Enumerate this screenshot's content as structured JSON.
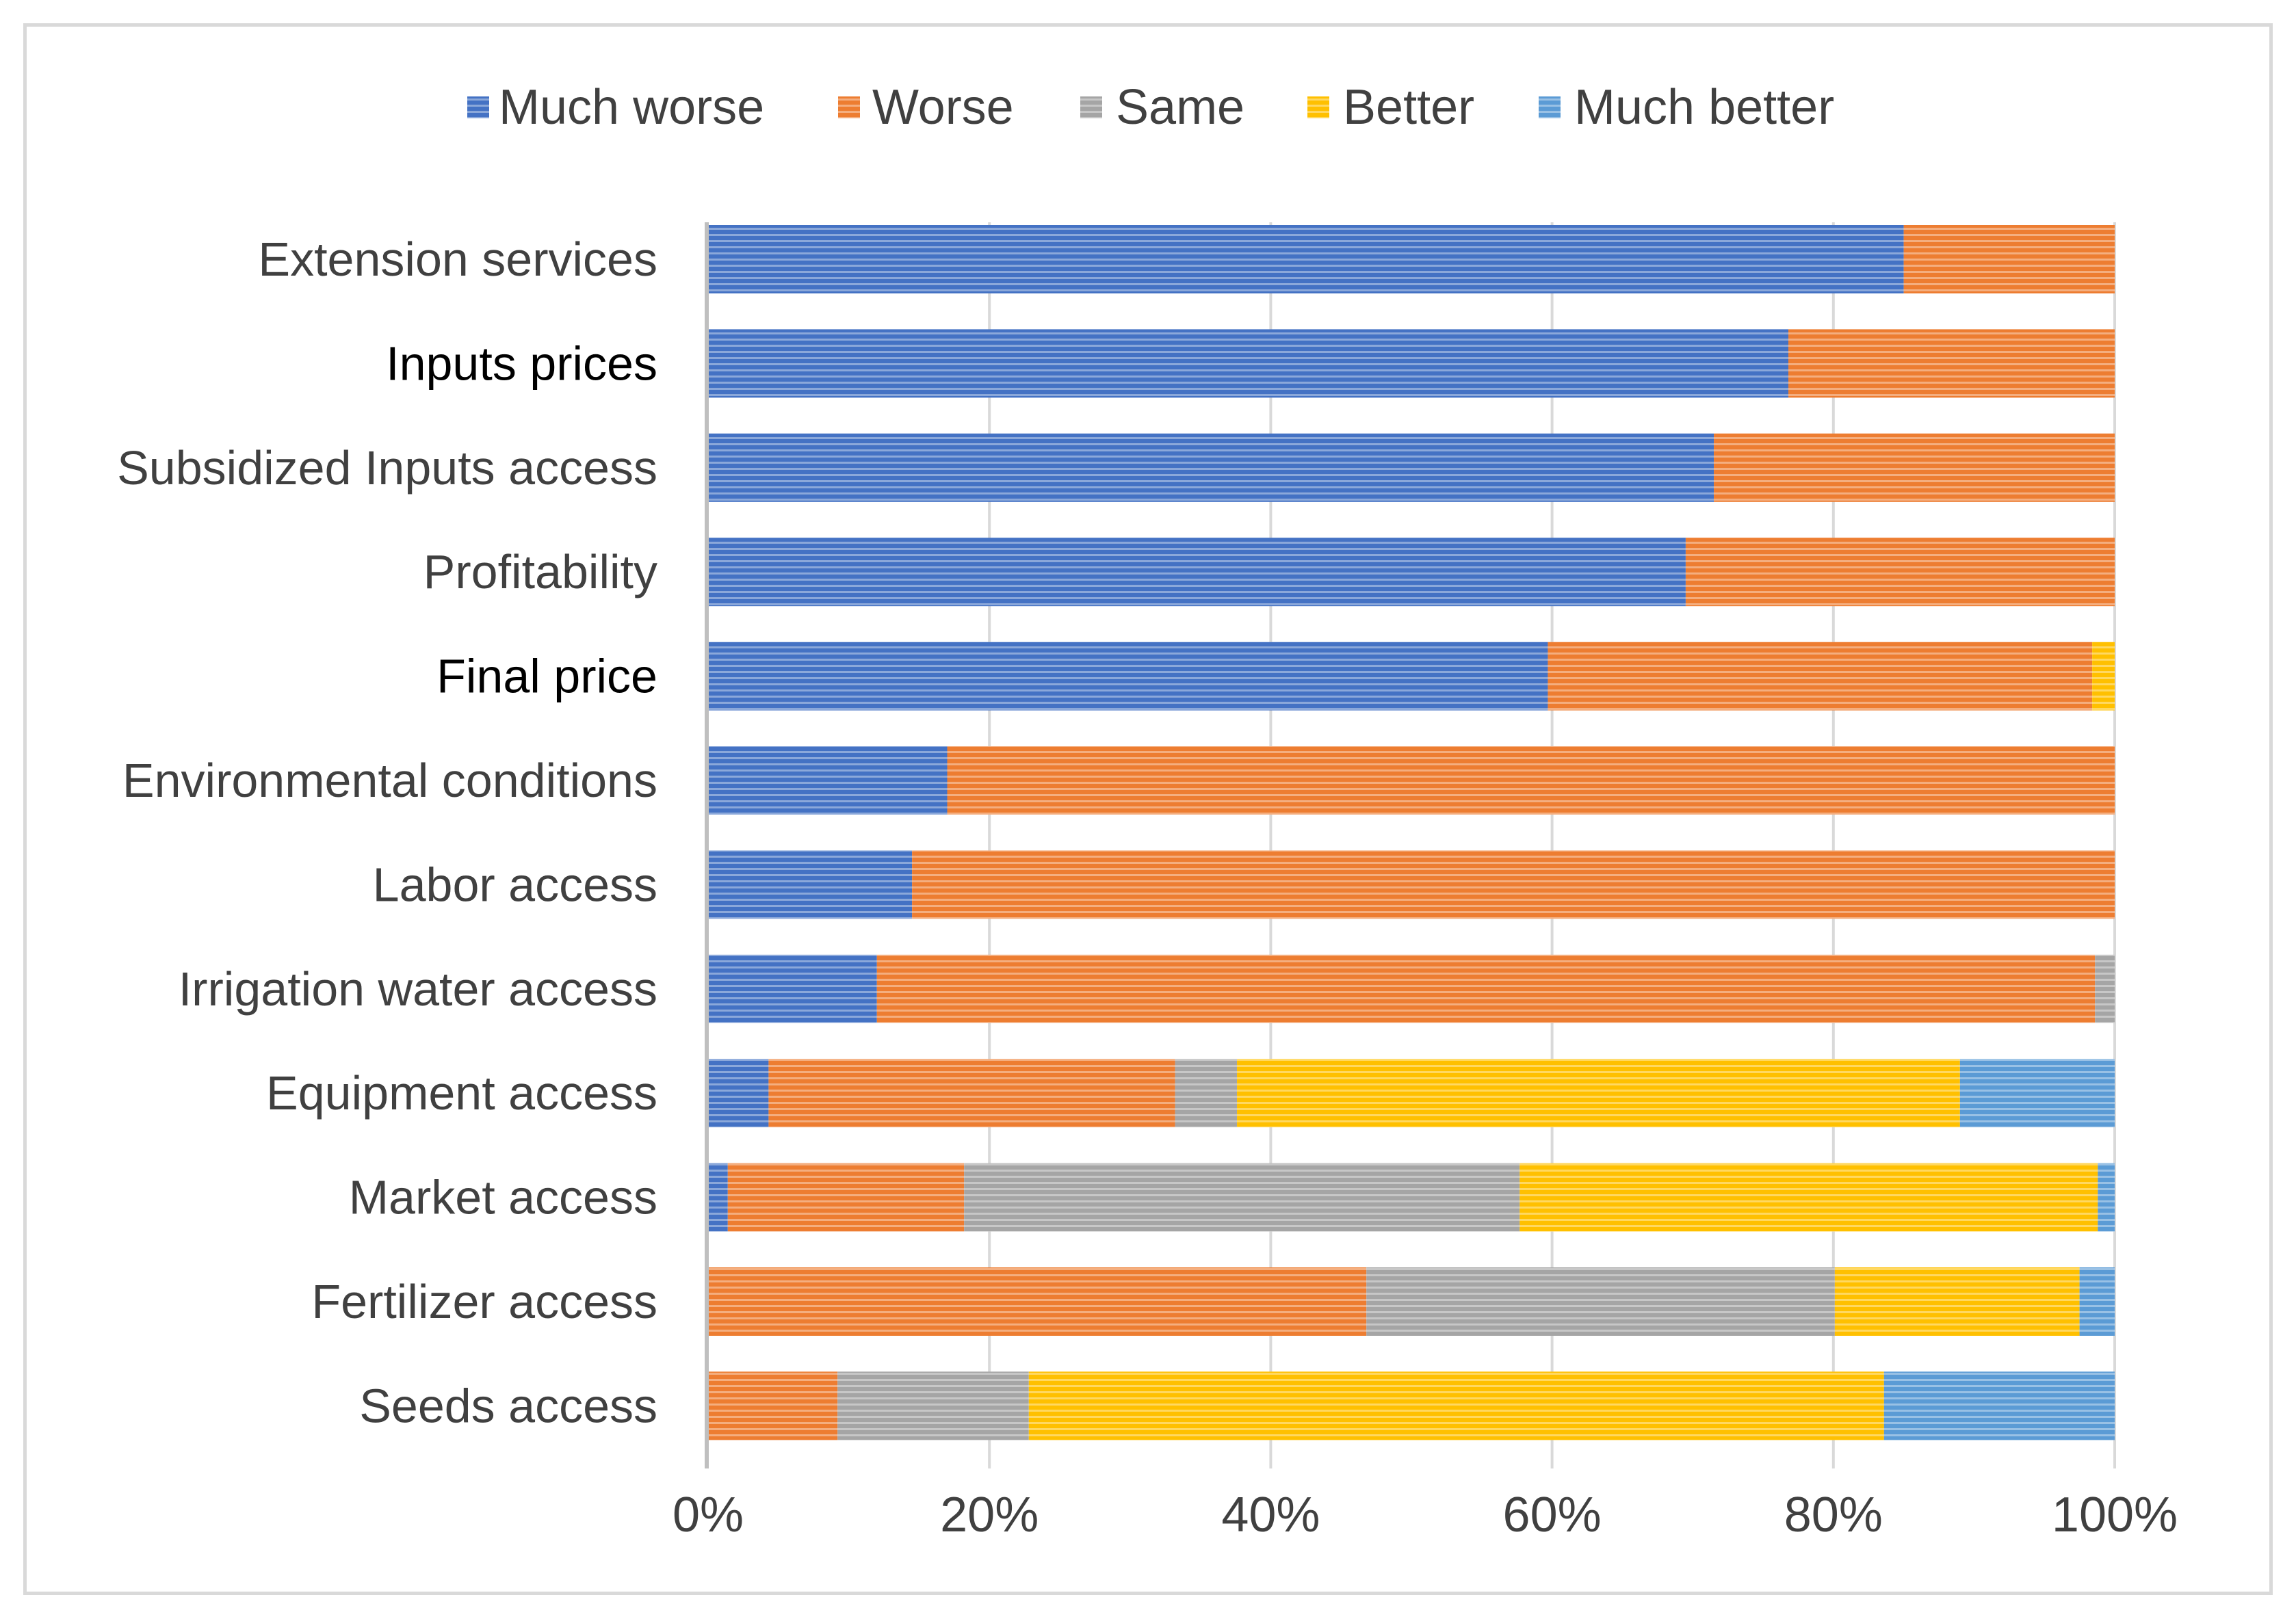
{
  "chart_data": {
    "type": "bar",
    "orientation": "horizontal",
    "stacked": true,
    "stack_mode": "percent",
    "title": "",
    "xlabel": "",
    "ylabel": "",
    "xlim": [
      0,
      100
    ],
    "x_ticks": [
      0,
      20,
      40,
      60,
      80,
      100
    ],
    "x_tick_labels": [
      "0%",
      "20%",
      "40%",
      "60%",
      "80%",
      "100%"
    ],
    "grid": "vertical",
    "legend_position": "top",
    "categories": [
      "Extension services",
      "Inputs prices",
      "Subsidized Inputs  access",
      "Profitability",
      "Final price",
      "Environmental conditions",
      "Labor  access",
      "Irrigation water access",
      "Equipment access",
      "Market access",
      "Fertilizer access",
      "Seeds access"
    ],
    "series": [
      {
        "name": "Much worse",
        "color": "#4472c4",
        "values": [
          85,
          76.8,
          71.5,
          69.5,
          59.7,
          17,
          14.5,
          12,
          4.3,
          1.4,
          0,
          0
        ]
      },
      {
        "name": "Worse",
        "color": "#ed7d31",
        "values": [
          15,
          23.2,
          28.5,
          30.5,
          38.7,
          83,
          85.5,
          86.6,
          28.9,
          16.8,
          46.8,
          9.2
        ]
      },
      {
        "name": "Same",
        "color": "#a5a5a5",
        "values": [
          0,
          0,
          0,
          0,
          0,
          0,
          0,
          1.4,
          4.4,
          39.5,
          33.3,
          13.6
        ]
      },
      {
        "name": "Better",
        "color": "#ffc000",
        "values": [
          0,
          0,
          0,
          0,
          1.6,
          0,
          0,
          0,
          51.4,
          41.1,
          17.4,
          60.8
        ]
      },
      {
        "name": "Much better",
        "color": "#5b9bd5",
        "values": [
          0,
          0,
          0,
          0,
          0,
          0,
          0,
          0,
          11,
          1.2,
          2.5,
          16.4
        ]
      }
    ]
  }
}
